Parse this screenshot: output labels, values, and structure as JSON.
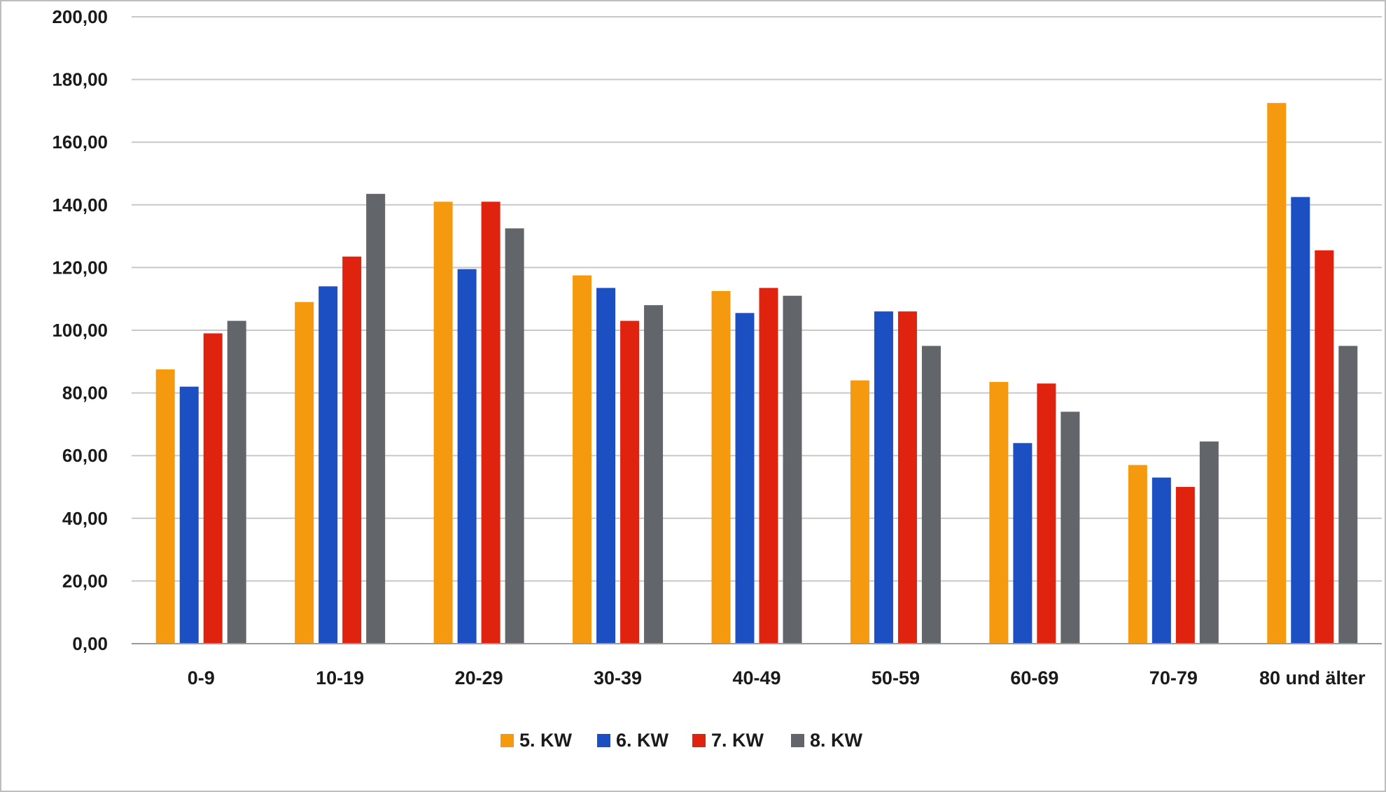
{
  "chart_data": {
    "type": "bar",
    "title": "",
    "xlabel": "",
    "ylabel": "",
    "ylim": [
      0,
      200
    ],
    "ytick_step": 20,
    "ytick_labels": [
      "0,00",
      "20,00",
      "40,00",
      "60,00",
      "80,00",
      "100,00",
      "120,00",
      "140,00",
      "160,00",
      "180,00",
      "200,00"
    ],
    "grid": true,
    "legend_position": "bottom",
    "categories": [
      "0-9",
      "10-19",
      "20-29",
      "30-39",
      "40-49",
      "50-59",
      "60-69",
      "70-79",
      "80 und älter"
    ],
    "series": [
      {
        "name": "5. KW",
        "color": "#f59a0f",
        "values": [
          87.5,
          109.0,
          141.0,
          117.5,
          112.5,
          84.0,
          83.5,
          57.0,
          172.5
        ]
      },
      {
        "name": "6. KW",
        "color": "#1c4fc2",
        "values": [
          82.0,
          114.0,
          119.5,
          113.5,
          105.5,
          106.0,
          64.0,
          53.0,
          142.5
        ]
      },
      {
        "name": "7. KW",
        "color": "#e0230f",
        "values": [
          99.0,
          123.5,
          141.0,
          103.0,
          113.5,
          106.0,
          83.0,
          50.0,
          125.5
        ]
      },
      {
        "name": "8. KW",
        "color": "#626569",
        "values": [
          103.0,
          143.5,
          132.5,
          108.0,
          111.0,
          95.0,
          74.0,
          64.5,
          95.0
        ]
      }
    ]
  }
}
